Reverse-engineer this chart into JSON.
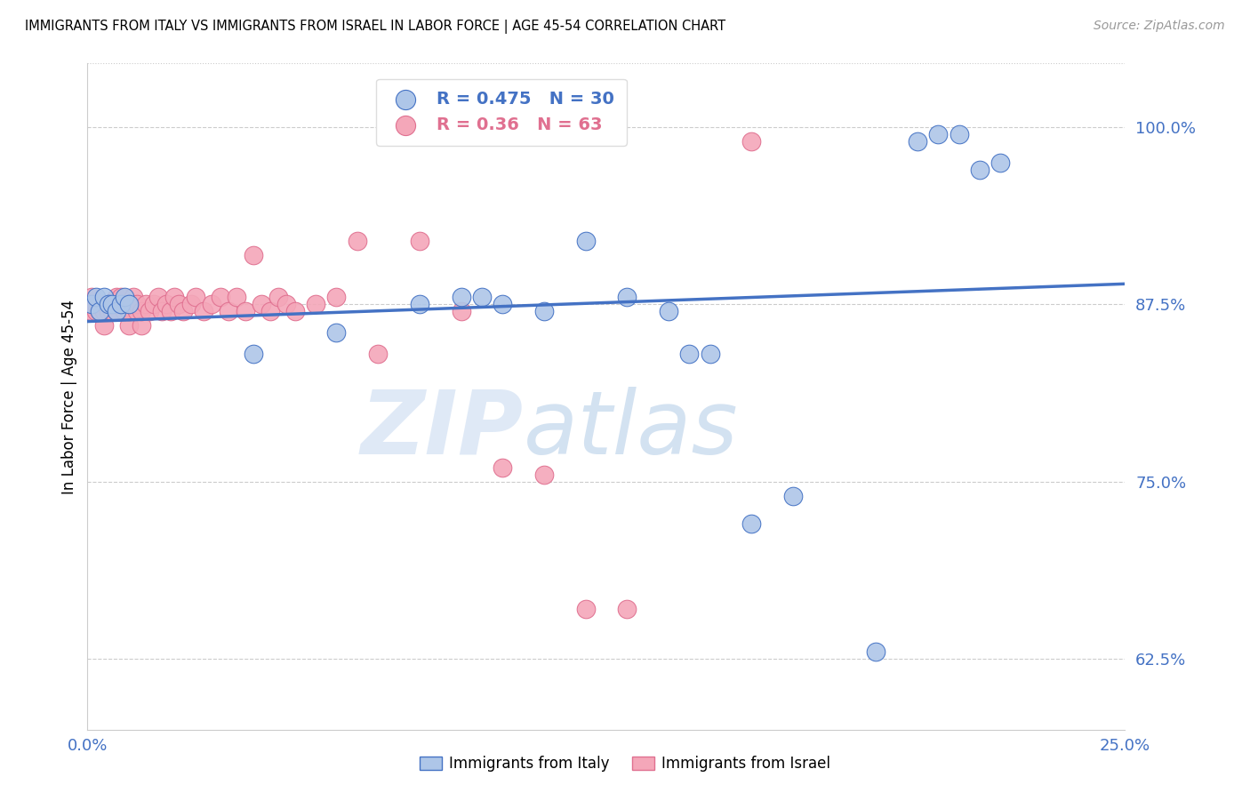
{
  "title": "IMMIGRANTS FROM ITALY VS IMMIGRANTS FROM ISRAEL IN LABOR FORCE | AGE 45-54 CORRELATION CHART",
  "source": "Source: ZipAtlas.com",
  "ylabel": "In Labor Force | Age 45-54",
  "xlim": [
    0.0,
    0.25
  ],
  "ylim": [
    0.575,
    1.045
  ],
  "yticks": [
    0.625,
    0.75,
    0.875,
    1.0
  ],
  "ytick_labels": [
    "62.5%",
    "75.0%",
    "87.5%",
    "100.0%"
  ],
  "xticks": [
    0.0,
    0.05,
    0.1,
    0.15,
    0.2,
    0.25
  ],
  "xtick_labels": [
    "0.0%",
    "",
    "",
    "",
    "",
    "25.0%"
  ],
  "italy_R": 0.475,
  "italy_N": 30,
  "israel_R": 0.36,
  "israel_N": 63,
  "italy_color": "#aec6e8",
  "israel_color": "#f4a7b9",
  "italy_line_color": "#4472c4",
  "israel_line_color": "#e07090",
  "axis_label_color": "#4472c4",
  "italy_x": [
    0.001,
    0.002,
    0.003,
    0.004,
    0.005,
    0.006,
    0.007,
    0.008,
    0.009,
    0.01,
    0.04,
    0.06,
    0.08,
    0.09,
    0.095,
    0.1,
    0.11,
    0.12,
    0.13,
    0.14,
    0.145,
    0.15,
    0.16,
    0.17,
    0.19,
    0.2,
    0.205,
    0.21,
    0.215,
    0.22
  ],
  "italy_y": [
    0.875,
    0.88,
    0.87,
    0.88,
    0.875,
    0.875,
    0.87,
    0.875,
    0.88,
    0.875,
    0.84,
    0.855,
    0.875,
    0.88,
    0.88,
    0.875,
    0.87,
    0.92,
    0.88,
    0.87,
    0.84,
    0.84,
    0.72,
    0.74,
    0.63,
    0.99,
    0.995,
    0.995,
    0.97,
    0.975
  ],
  "israel_x": [
    0.001,
    0.001,
    0.001,
    0.002,
    0.002,
    0.003,
    0.003,
    0.004,
    0.004,
    0.005,
    0.005,
    0.006,
    0.006,
    0.007,
    0.007,
    0.007,
    0.008,
    0.008,
    0.009,
    0.009,
    0.01,
    0.01,
    0.011,
    0.011,
    0.012,
    0.012,
    0.013,
    0.013,
    0.014,
    0.015,
    0.016,
    0.017,
    0.018,
    0.019,
    0.02,
    0.021,
    0.022,
    0.023,
    0.025,
    0.026,
    0.028,
    0.03,
    0.032,
    0.034,
    0.036,
    0.038,
    0.04,
    0.042,
    0.044,
    0.046,
    0.048,
    0.05,
    0.055,
    0.06,
    0.065,
    0.07,
    0.08,
    0.09,
    0.1,
    0.11,
    0.12,
    0.13,
    0.16
  ],
  "israel_y": [
    0.87,
    0.875,
    0.88,
    0.87,
    0.875,
    0.87,
    0.875,
    0.86,
    0.87,
    0.875,
    0.87,
    0.87,
    0.875,
    0.87,
    0.875,
    0.88,
    0.875,
    0.88,
    0.87,
    0.875,
    0.86,
    0.87,
    0.875,
    0.88,
    0.87,
    0.875,
    0.86,
    0.87,
    0.875,
    0.87,
    0.875,
    0.88,
    0.87,
    0.875,
    0.87,
    0.88,
    0.875,
    0.87,
    0.875,
    0.88,
    0.87,
    0.875,
    0.88,
    0.87,
    0.88,
    0.87,
    0.91,
    0.875,
    0.87,
    0.88,
    0.875,
    0.87,
    0.875,
    0.88,
    0.92,
    0.84,
    0.92,
    0.87,
    0.76,
    0.755,
    0.66,
    0.66,
    0.99
  ],
  "watermark_zip": "ZIP",
  "watermark_atlas": "atlas",
  "background_color": "#ffffff",
  "grid_color": "#cccccc",
  "spine_color": "#cccccc"
}
